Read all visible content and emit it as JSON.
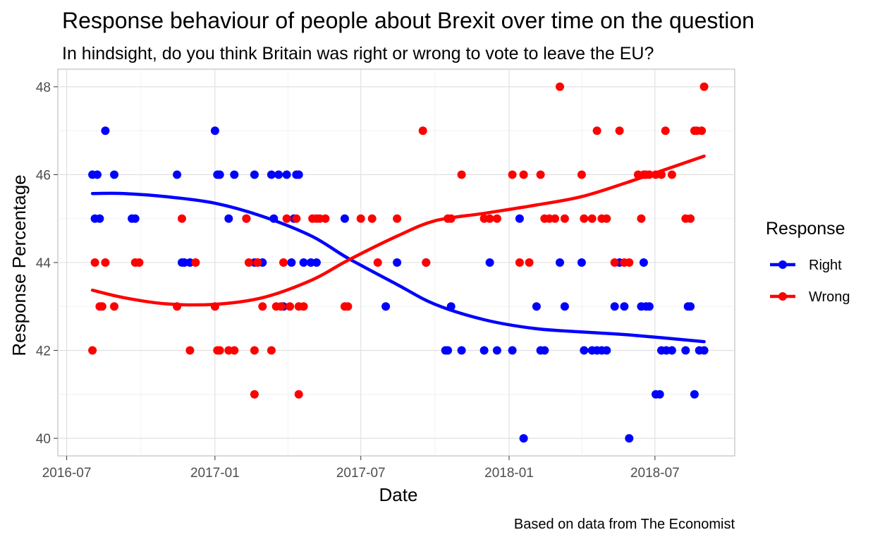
{
  "chart_data": {
    "type": "scatter",
    "title": "Response behaviour of people about Brexit over time on the question",
    "subtitle": "In hindsight, do you think Britain was right or wrong to vote to leave the EU?",
    "xlabel": "Date",
    "ylabel": "Response Percentage",
    "caption": "Based on data from The Economist",
    "x_ticks": [
      "2016-07",
      "2017-01",
      "2017-07",
      "2018-01",
      "2018-07"
    ],
    "y_ticks": [
      40,
      42,
      44,
      46,
      48
    ],
    "xlim": [
      "2016-06-20",
      "2018-10-08"
    ],
    "ylim": [
      39.6,
      48.4
    ],
    "grid": true,
    "legend": {
      "title": "Response",
      "position": "right"
    },
    "series": [
      {
        "name": "Right",
        "color": "#0000ff",
        "points": [
          [
            "2016-08-02",
            46
          ],
          [
            "2016-08-05",
            45
          ],
          [
            "2016-08-08",
            46
          ],
          [
            "2016-08-11",
            45
          ],
          [
            "2016-08-18",
            47
          ],
          [
            "2016-08-29",
            46
          ],
          [
            "2016-09-20",
            45
          ],
          [
            "2016-09-24",
            45
          ],
          [
            "2016-11-15",
            46
          ],
          [
            "2016-11-21",
            44
          ],
          [
            "2016-11-24",
            44
          ],
          [
            "2016-12-01",
            44
          ],
          [
            "2017-01-01",
            47
          ],
          [
            "2017-01-04",
            46
          ],
          [
            "2017-01-07",
            46
          ],
          [
            "2017-01-18",
            45
          ],
          [
            "2017-01-25",
            46
          ],
          [
            "2017-02-09",
            45
          ],
          [
            "2017-02-19",
            46
          ],
          [
            "2017-02-19",
            44
          ],
          [
            "2017-02-23",
            44
          ],
          [
            "2017-03-01",
            44
          ],
          [
            "2017-03-12",
            46
          ],
          [
            "2017-03-15",
            45
          ],
          [
            "2017-03-21",
            46
          ],
          [
            "2017-03-27",
            43
          ],
          [
            "2017-03-31",
            46
          ],
          [
            "2017-04-06",
            44
          ],
          [
            "2017-04-09",
            45
          ],
          [
            "2017-04-12",
            46
          ],
          [
            "2017-04-15",
            46
          ],
          [
            "2017-04-21",
            44
          ],
          [
            "2017-04-30",
            44
          ],
          [
            "2017-05-07",
            44
          ],
          [
            "2017-06-11",
            45
          ],
          [
            "2017-08-01",
            43
          ],
          [
            "2017-08-15",
            44
          ],
          [
            "2017-09-20",
            44
          ],
          [
            "2017-10-14",
            42
          ],
          [
            "2017-10-17",
            42
          ],
          [
            "2017-10-21",
            43
          ],
          [
            "2017-11-03",
            42
          ],
          [
            "2017-12-01",
            42
          ],
          [
            "2017-12-08",
            44
          ],
          [
            "2017-12-17",
            42
          ],
          [
            "2018-01-05",
            42
          ],
          [
            "2018-01-14",
            45
          ],
          [
            "2018-01-19",
            40
          ],
          [
            "2018-02-04",
            43
          ],
          [
            "2018-02-09",
            42
          ],
          [
            "2018-02-14",
            42
          ],
          [
            "2018-03-05",
            44
          ],
          [
            "2018-03-11",
            43
          ],
          [
            "2018-04-01",
            44
          ],
          [
            "2018-04-04",
            42
          ],
          [
            "2018-04-14",
            42
          ],
          [
            "2018-04-20",
            42
          ],
          [
            "2018-04-26",
            42
          ],
          [
            "2018-05-02",
            42
          ],
          [
            "2018-05-12",
            43
          ],
          [
            "2018-05-18",
            44
          ],
          [
            "2018-05-24",
            43
          ],
          [
            "2018-05-30",
            40
          ],
          [
            "2018-06-14",
            43
          ],
          [
            "2018-06-17",
            44
          ],
          [
            "2018-06-20",
            43
          ],
          [
            "2018-06-24",
            43
          ],
          [
            "2018-07-02",
            41
          ],
          [
            "2018-07-07",
            41
          ],
          [
            "2018-07-09",
            42
          ],
          [
            "2018-07-15",
            42
          ],
          [
            "2018-07-22",
            42
          ],
          [
            "2018-08-08",
            42
          ],
          [
            "2018-08-11",
            43
          ],
          [
            "2018-08-14",
            43
          ],
          [
            "2018-08-19",
            41
          ],
          [
            "2018-08-25",
            42
          ],
          [
            "2018-08-31",
            42
          ]
        ],
        "trend": [
          [
            "2016-08-02",
            45.57
          ],
          [
            "2016-09-10",
            45.57
          ],
          [
            "2016-11-01",
            45.5
          ],
          [
            "2017-01-01",
            45.35
          ],
          [
            "2017-03-01",
            45.05
          ],
          [
            "2017-05-01",
            44.6
          ],
          [
            "2017-06-15",
            44.1
          ],
          [
            "2017-08-15",
            43.5
          ],
          [
            "2017-10-01",
            43.05
          ],
          [
            "2017-12-01",
            42.7
          ],
          [
            "2018-02-01",
            42.5
          ],
          [
            "2018-04-01",
            42.42
          ],
          [
            "2018-06-01",
            42.35
          ],
          [
            "2018-08-31",
            42.2
          ]
        ]
      },
      {
        "name": "Wrong",
        "color": "#ff0000",
        "points": [
          [
            "2016-08-02",
            42
          ],
          [
            "2016-08-05",
            44
          ],
          [
            "2016-08-11",
            43
          ],
          [
            "2016-08-14",
            43
          ],
          [
            "2016-08-18",
            44
          ],
          [
            "2016-08-29",
            43
          ],
          [
            "2016-09-24",
            44
          ],
          [
            "2016-09-29",
            44
          ],
          [
            "2016-11-15",
            43
          ],
          [
            "2016-11-21",
            45
          ],
          [
            "2016-12-01",
            42
          ],
          [
            "2016-12-08",
            44
          ],
          [
            "2017-01-01",
            43
          ],
          [
            "2017-01-04",
            42
          ],
          [
            "2017-01-07",
            42
          ],
          [
            "2017-01-18",
            42
          ],
          [
            "2017-01-25",
            42
          ],
          [
            "2017-02-09",
            45
          ],
          [
            "2017-02-12",
            44
          ],
          [
            "2017-02-19",
            42
          ],
          [
            "2017-02-19",
            41
          ],
          [
            "2017-02-23",
            44
          ],
          [
            "2017-03-01",
            43
          ],
          [
            "2017-03-12",
            42
          ],
          [
            "2017-03-18",
            43
          ],
          [
            "2017-03-24",
            43
          ],
          [
            "2017-03-27",
            44
          ],
          [
            "2017-03-31",
            45
          ],
          [
            "2017-04-04",
            43
          ],
          [
            "2017-04-12",
            45
          ],
          [
            "2017-04-15",
            41
          ],
          [
            "2017-04-15",
            43
          ],
          [
            "2017-04-21",
            43
          ],
          [
            "2017-05-02",
            45
          ],
          [
            "2017-05-07",
            45
          ],
          [
            "2017-05-11",
            45
          ],
          [
            "2017-05-18",
            45
          ],
          [
            "2017-06-11",
            43
          ],
          [
            "2017-06-15",
            43
          ],
          [
            "2017-07-01",
            45
          ],
          [
            "2017-07-15",
            45
          ],
          [
            "2017-07-22",
            44
          ],
          [
            "2017-08-15",
            45
          ],
          [
            "2017-09-16",
            47
          ],
          [
            "2017-09-20",
            44
          ],
          [
            "2017-10-17",
            45
          ],
          [
            "2017-10-21",
            45
          ],
          [
            "2017-11-03",
            46
          ],
          [
            "2017-12-01",
            45
          ],
          [
            "2017-12-08",
            45
          ],
          [
            "2017-12-17",
            45
          ],
          [
            "2018-01-05",
            46
          ],
          [
            "2018-01-14",
            44
          ],
          [
            "2018-01-19",
            46
          ],
          [
            "2018-01-26",
            44
          ],
          [
            "2018-02-09",
            46
          ],
          [
            "2018-02-14",
            45
          ],
          [
            "2018-02-20",
            45
          ],
          [
            "2018-02-27",
            45
          ],
          [
            "2018-03-05",
            48
          ],
          [
            "2018-03-11",
            45
          ],
          [
            "2018-04-01",
            46
          ],
          [
            "2018-04-04",
            45
          ],
          [
            "2018-04-14",
            45
          ],
          [
            "2018-04-20",
            47
          ],
          [
            "2018-04-26",
            45
          ],
          [
            "2018-05-02",
            45
          ],
          [
            "2018-05-12",
            44
          ],
          [
            "2018-05-18",
            47
          ],
          [
            "2018-05-24",
            44
          ],
          [
            "2018-05-30",
            44
          ],
          [
            "2018-06-10",
            46
          ],
          [
            "2018-06-14",
            45
          ],
          [
            "2018-06-17",
            46
          ],
          [
            "2018-06-20",
            46
          ],
          [
            "2018-06-24",
            46
          ],
          [
            "2018-07-02",
            46
          ],
          [
            "2018-07-09",
            46
          ],
          [
            "2018-07-14",
            47
          ],
          [
            "2018-07-22",
            46
          ],
          [
            "2018-08-08",
            45
          ],
          [
            "2018-08-14",
            45
          ],
          [
            "2018-08-19",
            47
          ],
          [
            "2018-08-22",
            47
          ],
          [
            "2018-08-28",
            47
          ],
          [
            "2018-08-31",
            48
          ]
        ],
        "trend": [
          [
            "2016-08-02",
            43.37
          ],
          [
            "2016-09-10",
            43.2
          ],
          [
            "2016-11-01",
            43.06
          ],
          [
            "2017-01-01",
            43.05
          ],
          [
            "2017-03-01",
            43.2
          ],
          [
            "2017-05-01",
            43.6
          ],
          [
            "2017-06-15",
            44.05
          ],
          [
            "2017-08-15",
            44.6
          ],
          [
            "2017-10-01",
            44.95
          ],
          [
            "2017-12-01",
            45.12
          ],
          [
            "2018-02-01",
            45.3
          ],
          [
            "2018-04-01",
            45.5
          ],
          [
            "2018-06-01",
            45.85
          ],
          [
            "2018-08-31",
            46.42
          ]
        ]
      }
    ]
  }
}
